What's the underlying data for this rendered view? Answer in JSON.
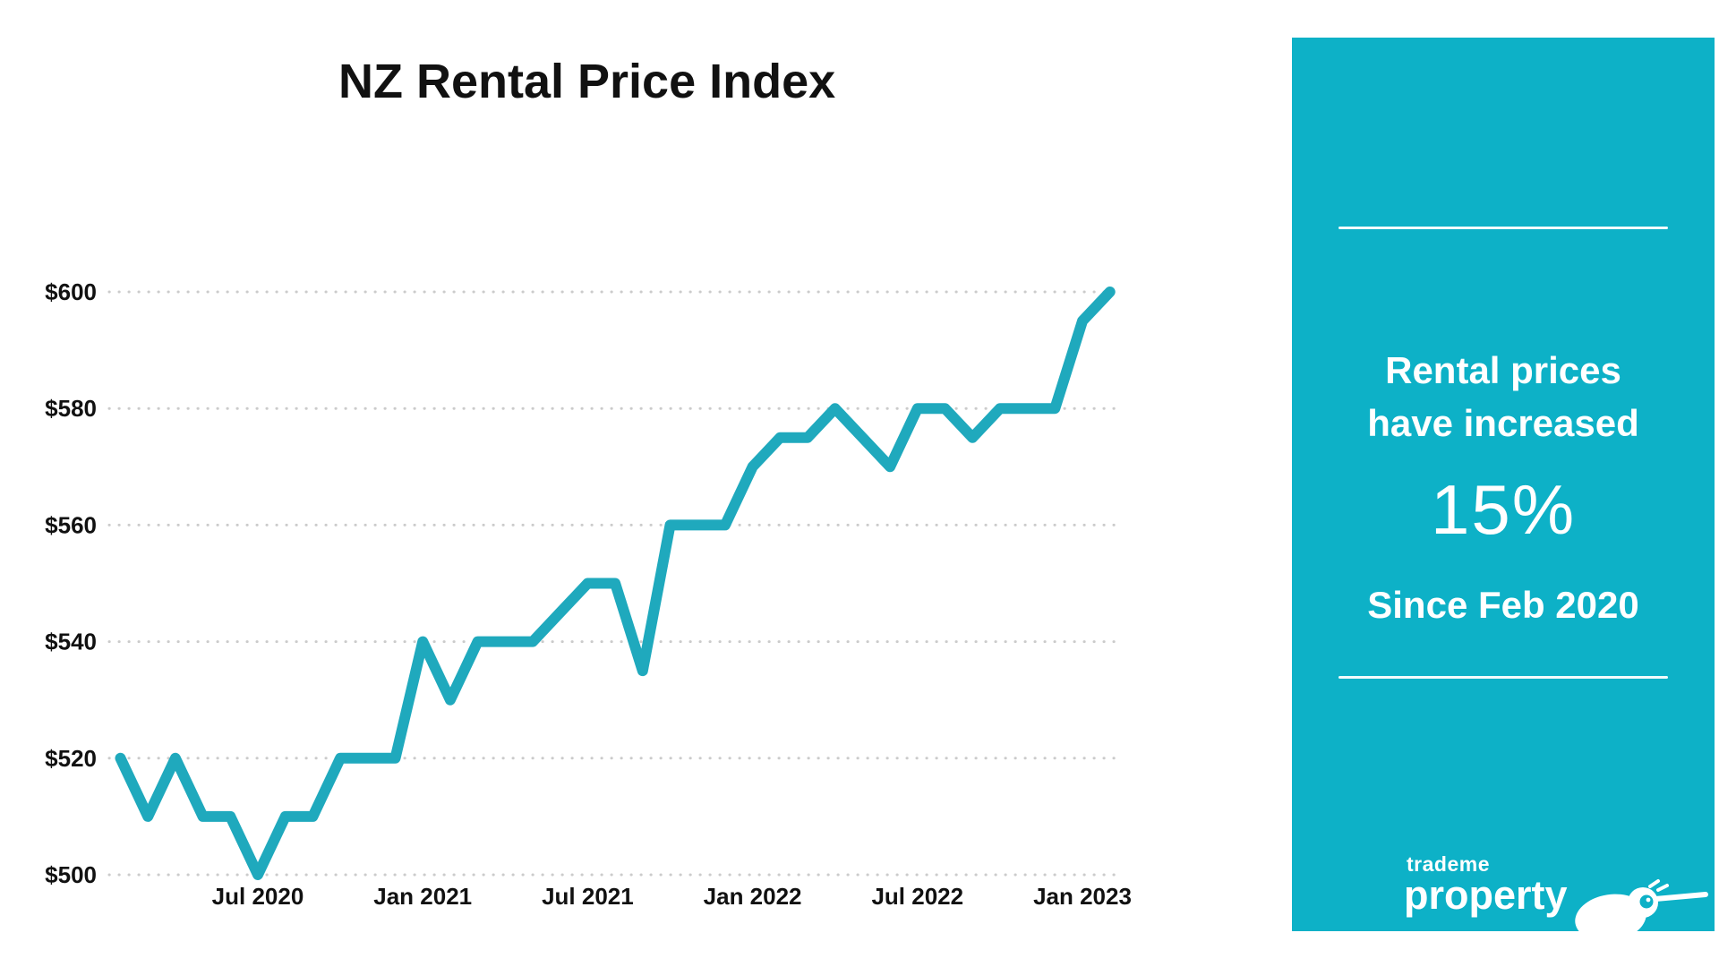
{
  "chart": {
    "accent_color": "#1FA9BD",
    "gridline_color": "#cbcbcb",
    "text_color": "#111111"
  },
  "chart_data": {
    "type": "line",
    "title": "NZ Rental Price Index",
    "xlabel": "",
    "ylabel": "",
    "ylim": [
      500,
      600
    ],
    "grid": "dotted horizontal",
    "legend": "none",
    "line_color": "#1FA9BD",
    "x": [
      "Feb 2020",
      "Mar 2020",
      "Apr 2020",
      "May 2020",
      "Jun 2020",
      "Jul 2020",
      "Aug 2020",
      "Sep 2020",
      "Oct 2020",
      "Nov 2020",
      "Dec 2020",
      "Jan 2021",
      "Feb 2021",
      "Mar 2021",
      "Apr 2021",
      "May 2021",
      "Jun 2021",
      "Jul 2021",
      "Aug 2021",
      "Sep 2021",
      "Oct 2021",
      "Nov 2021",
      "Dec 2021",
      "Jan 2022",
      "Feb 2022",
      "Mar 2022",
      "Apr 2022",
      "May 2022",
      "Jun 2022",
      "Jul 2022",
      "Aug 2022",
      "Sep 2022",
      "Oct 2022",
      "Nov 2022",
      "Dec 2022",
      "Jan 2023",
      "Feb 2023"
    ],
    "values": [
      520,
      510,
      520,
      510,
      510,
      500,
      510,
      510,
      520,
      520,
      520,
      540,
      530,
      540,
      540,
      540,
      545,
      550,
      550,
      535,
      560,
      560,
      560,
      570,
      575,
      575,
      580,
      575,
      570,
      580,
      580,
      575,
      580,
      580,
      580,
      595,
      600
    ],
    "y_ticks": [
      {
        "label": "$500",
        "value": 500
      },
      {
        "label": "$520",
        "value": 520
      },
      {
        "label": "$540",
        "value": 540
      },
      {
        "label": "$560",
        "value": 560
      },
      {
        "label": "$580",
        "value": 580
      },
      {
        "label": "$600",
        "value": 600
      }
    ],
    "x_ticks": [
      {
        "label": "Jul 2020",
        "month_index": 5
      },
      {
        "label": "Jan 2021",
        "month_index": 11
      },
      {
        "label": "Jul 2021",
        "month_index": 17
      },
      {
        "label": "Jan 2022",
        "month_index": 23
      },
      {
        "label": "Jul 2022",
        "month_index": 29
      },
      {
        "label": "Jan 2023",
        "month_index": 35
      }
    ]
  },
  "panel": {
    "background": "#0DB1C7",
    "heading_line1": "Rental prices",
    "heading_line2": "have increased",
    "stat": "15%",
    "subheading": "Since Feb 2020",
    "logo_top": "trademe",
    "logo_bottom": "property"
  }
}
